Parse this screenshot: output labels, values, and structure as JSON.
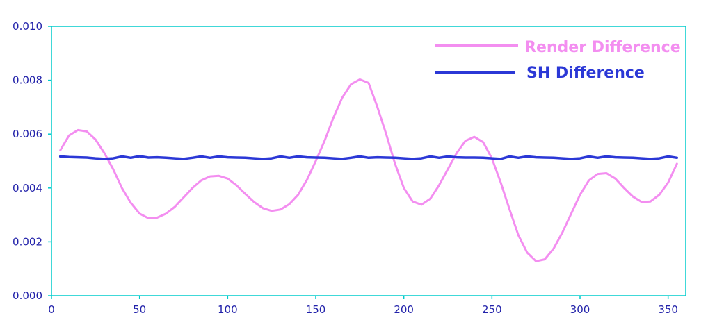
{
  "chart_data": {
    "type": "line",
    "title": "",
    "xlabel": "",
    "ylabel": "",
    "xlim": [
      0,
      360
    ],
    "ylim": [
      0,
      0.01
    ],
    "x_ticks": [
      "0",
      "50",
      "100",
      "150",
      "200",
      "250",
      "300",
      "350"
    ],
    "y_ticks": [
      "0.000",
      "0.002",
      "0.004",
      "0.006",
      "0.008",
      "0.010"
    ],
    "grid": false,
    "legend_position": "top-right",
    "colors": {
      "axis": "#00cccc",
      "tick_text": "#2222aa"
    },
    "series": [
      {
        "name": "Render Difference",
        "color": "#f38ef0",
        "points": [
          [
            5,
            0.0054
          ],
          [
            10,
            0.00595
          ],
          [
            15,
            0.00615
          ],
          [
            20,
            0.0061
          ],
          [
            25,
            0.0058
          ],
          [
            30,
            0.0053
          ],
          [
            35,
            0.0047
          ],
          [
            40,
            0.004
          ],
          [
            45,
            0.00345
          ],
          [
            50,
            0.00305
          ],
          [
            55,
            0.00288
          ],
          [
            60,
            0.0029
          ],
          [
            65,
            0.00305
          ],
          [
            70,
            0.0033
          ],
          [
            75,
            0.00365
          ],
          [
            80,
            0.004
          ],
          [
            85,
            0.00428
          ],
          [
            90,
            0.00443
          ],
          [
            95,
            0.00445
          ],
          [
            100,
            0.00435
          ],
          [
            105,
            0.0041
          ],
          [
            110,
            0.00378
          ],
          [
            115,
            0.00348
          ],
          [
            120,
            0.00325
          ],
          [
            125,
            0.00315
          ],
          [
            130,
            0.0032
          ],
          [
            135,
            0.0034
          ],
          [
            140,
            0.00375
          ],
          [
            145,
            0.0043
          ],
          [
            150,
            0.005
          ],
          [
            155,
            0.00575
          ],
          [
            160,
            0.0066
          ],
          [
            165,
            0.00735
          ],
          [
            170,
            0.00785
          ],
          [
            175,
            0.00803
          ],
          [
            180,
            0.0079
          ],
          [
            185,
            0.007
          ],
          [
            190,
            0.006
          ],
          [
            195,
            0.0049
          ],
          [
            200,
            0.004
          ],
          [
            205,
            0.0035
          ],
          [
            210,
            0.00338
          ],
          [
            215,
            0.0036
          ],
          [
            220,
            0.0041
          ],
          [
            225,
            0.0047
          ],
          [
            230,
            0.0053
          ],
          [
            235,
            0.00575
          ],
          [
            240,
            0.0059
          ],
          [
            245,
            0.0057
          ],
          [
            250,
            0.0051
          ],
          [
            255,
            0.0042
          ],
          [
            260,
            0.0032
          ],
          [
            265,
            0.00225
          ],
          [
            270,
            0.0016
          ],
          [
            275,
            0.00128
          ],
          [
            280,
            0.00135
          ],
          [
            285,
            0.00175
          ],
          [
            290,
            0.00235
          ],
          [
            295,
            0.00305
          ],
          [
            300,
            0.00375
          ],
          [
            305,
            0.00428
          ],
          [
            310,
            0.00452
          ],
          [
            315,
            0.00455
          ],
          [
            320,
            0.00435
          ],
          [
            325,
            0.004
          ],
          [
            330,
            0.00368
          ],
          [
            335,
            0.00348
          ],
          [
            340,
            0.0035
          ],
          [
            345,
            0.00375
          ],
          [
            350,
            0.0042
          ],
          [
            355,
            0.0049
          ]
        ]
      },
      {
        "name": "SH Difference",
        "color": "#2b38d6",
        "points": [
          [
            5,
            0.00517
          ],
          [
            10,
            0.00515
          ],
          [
            15,
            0.00514
          ],
          [
            20,
            0.00513
          ],
          [
            25,
            0.0051
          ],
          [
            30,
            0.00508
          ],
          [
            35,
            0.0051
          ],
          [
            40,
            0.00517
          ],
          [
            45,
            0.00512
          ],
          [
            50,
            0.00518
          ],
          [
            55,
            0.00513
          ],
          [
            60,
            0.00514
          ],
          [
            65,
            0.00512
          ],
          [
            70,
            0.0051
          ],
          [
            75,
            0.00508
          ],
          [
            80,
            0.00512
          ],
          [
            85,
            0.00517
          ],
          [
            90,
            0.00512
          ],
          [
            95,
            0.00517
          ],
          [
            100,
            0.00514
          ],
          [
            105,
            0.00513
          ],
          [
            110,
            0.00512
          ],
          [
            115,
            0.0051
          ],
          [
            120,
            0.00508
          ],
          [
            125,
            0.0051
          ],
          [
            130,
            0.00517
          ],
          [
            135,
            0.00512
          ],
          [
            140,
            0.00517
          ],
          [
            145,
            0.00514
          ],
          [
            150,
            0.00513
          ],
          [
            155,
            0.00512
          ],
          [
            160,
            0.0051
          ],
          [
            165,
            0.00508
          ],
          [
            170,
            0.00512
          ],
          [
            175,
            0.00517
          ],
          [
            180,
            0.00512
          ],
          [
            185,
            0.00514
          ],
          [
            190,
            0.00513
          ],
          [
            195,
            0.00512
          ],
          [
            200,
            0.0051
          ],
          [
            205,
            0.00508
          ],
          [
            210,
            0.0051
          ],
          [
            215,
            0.00517
          ],
          [
            220,
            0.00512
          ],
          [
            225,
            0.00517
          ],
          [
            230,
            0.00514
          ],
          [
            235,
            0.00513
          ],
          [
            240,
            0.00513
          ],
          [
            245,
            0.00512
          ],
          [
            250,
            0.0051
          ],
          [
            255,
            0.00508
          ],
          [
            260,
            0.00517
          ],
          [
            265,
            0.00512
          ],
          [
            270,
            0.00517
          ],
          [
            275,
            0.00514
          ],
          [
            280,
            0.00513
          ],
          [
            285,
            0.00512
          ],
          [
            290,
            0.0051
          ],
          [
            295,
            0.00508
          ],
          [
            300,
            0.0051
          ],
          [
            305,
            0.00517
          ],
          [
            310,
            0.00512
          ],
          [
            315,
            0.00517
          ],
          [
            320,
            0.00514
          ],
          [
            325,
            0.00513
          ],
          [
            330,
            0.00512
          ],
          [
            335,
            0.0051
          ],
          [
            340,
            0.00508
          ],
          [
            345,
            0.0051
          ],
          [
            350,
            0.00517
          ],
          [
            355,
            0.00512
          ]
        ]
      }
    ]
  }
}
